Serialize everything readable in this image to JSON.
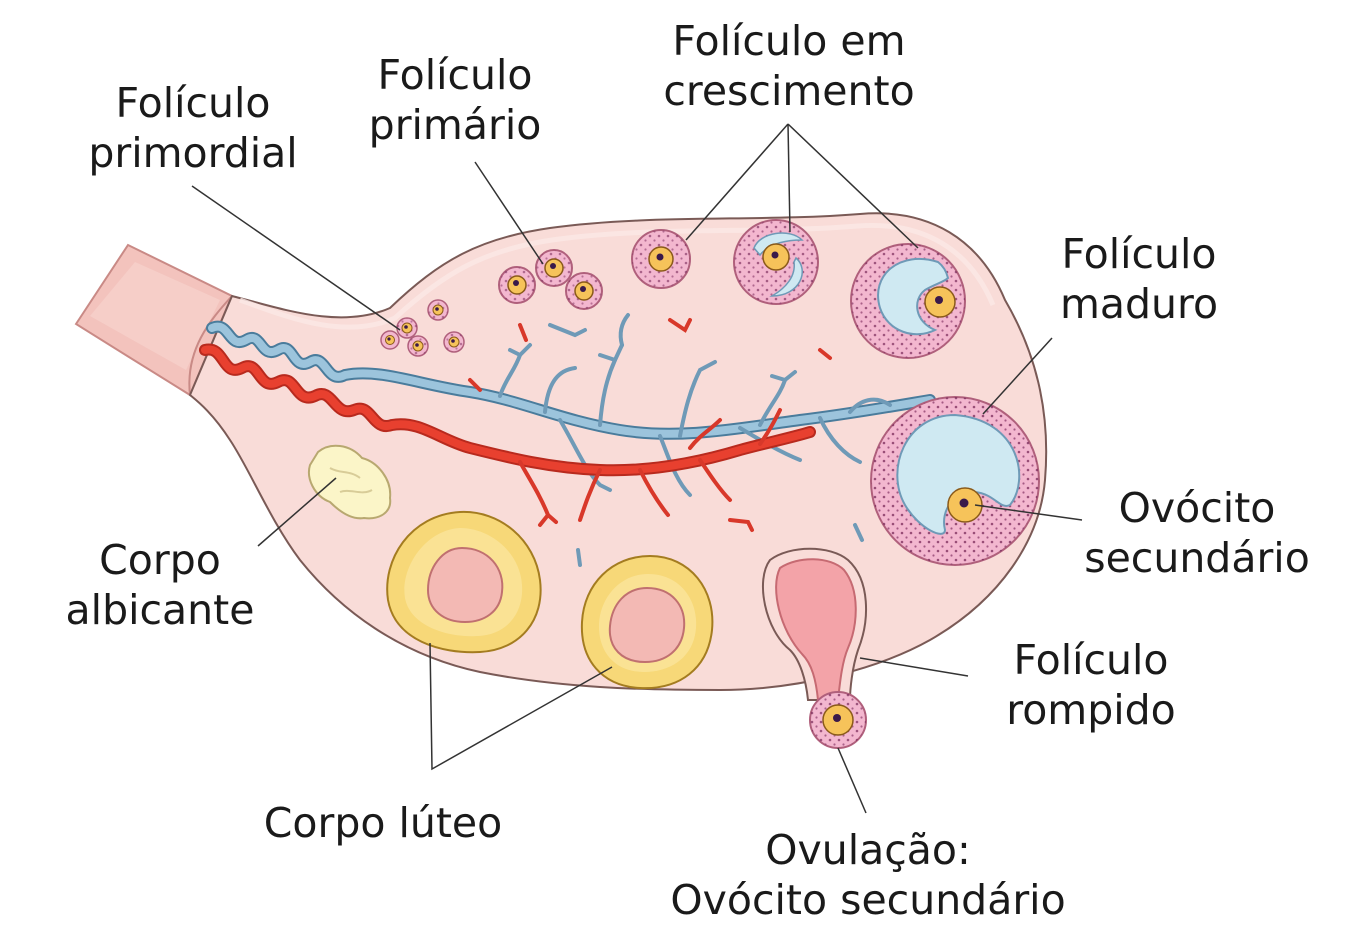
{
  "labels": {
    "primordial": {
      "line1": "Folículo",
      "line2": "primordial"
    },
    "primario": {
      "line1": "Folículo",
      "line2": "primário"
    },
    "crescimento": {
      "line1": "Folículo em",
      "line2": "crescimento"
    },
    "maduro": {
      "line1": "Folículo",
      "line2": "maduro"
    },
    "ovocito": {
      "line1": "Ovócito",
      "line2": "secundário"
    },
    "rompido": {
      "line1": "Folículo",
      "line2": "rompido"
    },
    "ovulacao": {
      "line1": "Ovulação:",
      "line2": "Ovócito secundário"
    },
    "luteo": {
      "line1": "Corpo lúteo"
    },
    "albicante": {
      "line1": "Corpo",
      "line2": "albicante"
    }
  },
  "colors": {
    "ovary_fill": "#f9dcd8",
    "artery": "#e8402f",
    "vein": "#9cc4dc",
    "granulosa": "#f3b7cf",
    "antrum": "#cfe9f2",
    "oocyte": "#f6c35a",
    "corpus_luteum": "#f7d878",
    "corpus_albicans": "#fbf5c8"
  }
}
